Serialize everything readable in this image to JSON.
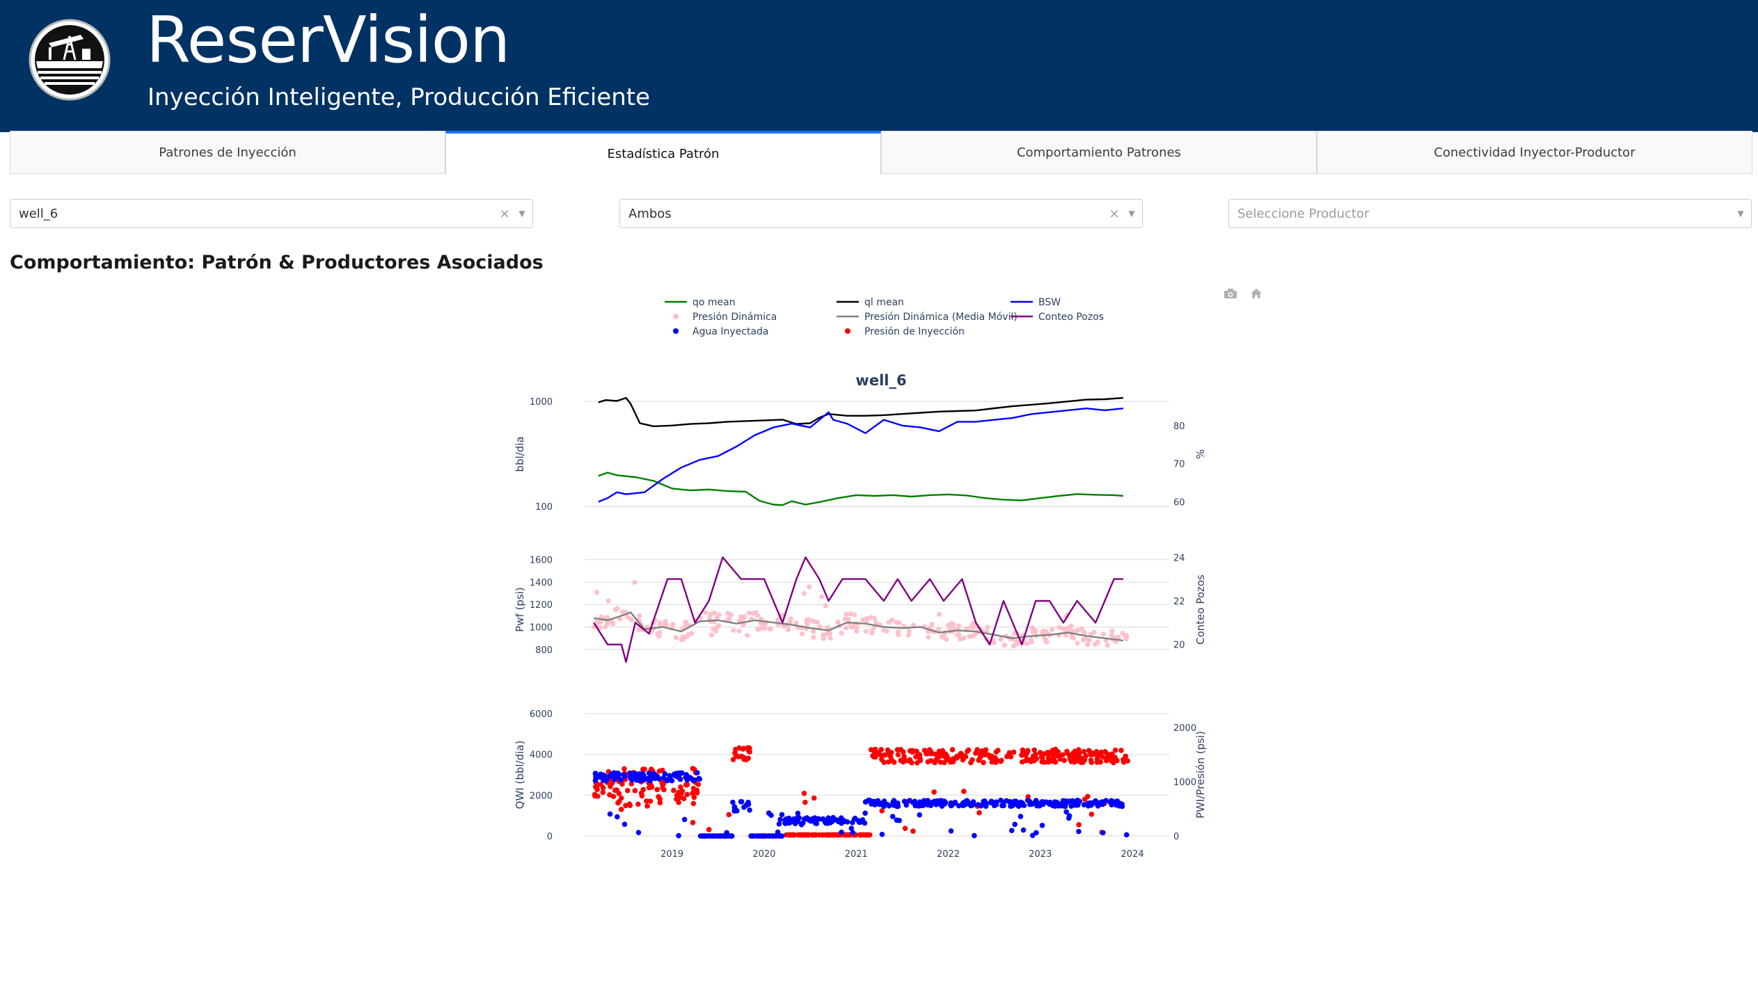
{
  "app": {
    "title": "ReserVision",
    "subtitle": "Inyección Inteligente, Producción Eficiente",
    "brand_color": "#003263"
  },
  "tabs": [
    {
      "label": "Patrones de Inyección",
      "active": false
    },
    {
      "label": "Estadística Patrón",
      "active": true
    },
    {
      "label": "Comportamiento Patrones",
      "active": false
    },
    {
      "label": "Conectividad Inyector-Productor",
      "active": false
    }
  ],
  "filters": {
    "pattern": {
      "value": "well_6"
    },
    "mode": {
      "value": "Ambos"
    },
    "producer": {
      "placeholder": "Seleccione Productor"
    }
  },
  "section": {
    "title": "Comportamiento: Patrón & Productores Asociados"
  },
  "modebar": {
    "icons": [
      "camera-icon",
      "home-icon"
    ]
  },
  "chart_data": {
    "type": "line",
    "title": "well_6",
    "legend": [
      {
        "name": "qo mean",
        "color": "#008000",
        "kind": "line"
      },
      {
        "name": "ql mean",
        "color": "#000000",
        "kind": "line"
      },
      {
        "name": "BSW",
        "color": "#0000ff",
        "kind": "line"
      },
      {
        "name": "Presión Dinámica",
        "color": "#ffc0cb",
        "kind": "marker"
      },
      {
        "name": "Presión Dinámica (Media Móvil)",
        "color": "#808080",
        "kind": "line"
      },
      {
        "name": "Conteo Pozos",
        "color": "#800080",
        "kind": "line"
      },
      {
        "name": "Agua Inyectada",
        "color": "#0000ff",
        "kind": "marker"
      },
      {
        "name": "Presión de Inyección",
        "color": "#ff0000",
        "kind": "marker"
      }
    ],
    "x_ticks": [
      "2019",
      "2020",
      "2021",
      "2022",
      "2023",
      "2024"
    ],
    "xlim": [
      2018.55,
      2024.9
    ],
    "panels": [
      {
        "ylabel_left": "bbl/dia",
        "ylabel_right": "%",
        "left_scale": "log",
        "ylim_left": [
          86,
          1150
        ],
        "ylim_right": [
          57,
          88
        ],
        "left_ticks": [
          "100",
          "1000"
        ],
        "right_ticks": [
          "60",
          "70",
          "80"
        ],
        "series": [
          {
            "name": "ql mean",
            "axis": "left",
            "x": [
              2018.7,
              2018.78,
              2018.9,
              2019.0,
              2019.05,
              2019.15,
              2019.3,
              2019.5,
              2019.7,
              2019.9,
              2020.1,
              2020.3,
              2020.5,
              2020.7,
              2020.85,
              2021.0,
              2021.1,
              2021.2,
              2021.4,
              2021.6,
              2021.8,
              2022.0,
              2022.2,
              2022.4,
              2022.6,
              2022.8,
              2023.0,
              2023.2,
              2023.4,
              2023.6,
              2023.8,
              2024.0,
              2024.2,
              2024.4
            ],
            "y": [
              980,
              1030,
              1010,
              1080,
              950,
              620,
              580,
              590,
              610,
              620,
              640,
              650,
              660,
              670,
              610,
              620,
              700,
              760,
              730,
              730,
              740,
              760,
              780,
              800,
              810,
              820,
              860,
              900,
              930,
              960,
              1000,
              1040,
              1050,
              1080
            ]
          },
          {
            "name": "qo mean",
            "axis": "left",
            "x": [
              2018.7,
              2018.8,
              2018.9,
              2019.1,
              2019.3,
              2019.5,
              2019.7,
              2019.9,
              2020.1,
              2020.3,
              2020.45,
              2020.6,
              2020.7,
              2020.8,
              2020.95,
              2021.1,
              2021.3,
              2021.5,
              2021.7,
              2021.9,
              2022.1,
              2022.3,
              2022.5,
              2022.7,
              2022.9,
              2023.1,
              2023.3,
              2023.5,
              2023.7,
              2023.9,
              2024.1,
              2024.3,
              2024.4
            ],
            "y": [
              195,
              210,
              198,
              190,
              175,
              148,
              142,
              145,
              140,
              138,
              113,
              104,
              103,
              112,
              104,
              110,
              120,
              128,
              126,
              128,
              124,
              128,
              130,
              127,
              120,
              116,
              114,
              120,
              126,
              131,
              129,
              128,
              126
            ]
          },
          {
            "name": "BSW",
            "axis": "right",
            "x": [
              2018.7,
              2018.8,
              2018.9,
              2019.0,
              2019.2,
              2019.4,
              2019.6,
              2019.8,
              2020.0,
              2020.2,
              2020.4,
              2020.6,
              2020.8,
              2021.0,
              2021.2,
              2021.25,
              2021.4,
              2021.6,
              2021.8,
              2022.0,
              2022.2,
              2022.4,
              2022.6,
              2022.8,
              2023.0,
              2023.2,
              2023.4,
              2023.6,
              2023.8,
              2024.0,
              2024.2,
              2024.4
            ],
            "y": [
              60,
              61,
              62.5,
              62,
              62.5,
              66,
              69,
              71,
              72,
              74.5,
              77.5,
              79.5,
              80.5,
              79.5,
              83.5,
              81.5,
              80.5,
              78,
              81.5,
              80,
              79.5,
              78.5,
              81,
              81,
              81.5,
              82,
              83,
              83.5,
              84,
              84.5,
              84,
              84.5
            ]
          }
        ]
      },
      {
        "ylabel_left": "Pwf (psi)",
        "ylabel_right": "Conteo Pozos",
        "ylim_left": [
          650,
          1660
        ],
        "ylim_right": [
          19,
          24.2
        ],
        "left_ticks": [
          "800",
          "1000",
          "1200",
          "1400",
          "1600"
        ],
        "right_ticks": [
          "20",
          "22",
          "24"
        ],
        "series": [
          {
            "name": "Presión Dinámica (Media Móvil)",
            "axis": "left",
            "x": [
              2018.65,
              2018.8,
              2018.95,
              2019.05,
              2019.2,
              2019.4,
              2019.6,
              2019.8,
              2020.0,
              2020.2,
              2020.4,
              2020.6,
              2020.8,
              2021.0,
              2021.2,
              2021.4,
              2021.6,
              2021.8,
              2022.0,
              2022.2,
              2022.4,
              2022.6,
              2022.8,
              2023.0,
              2023.2,
              2023.4,
              2023.6,
              2023.8,
              2024.0,
              2024.2,
              2024.4
            ],
            "y": [
              1080,
              1060,
              1100,
              1130,
              980,
              1000,
              960,
              1050,
              1060,
              1030,
              1060,
              1040,
              1020,
              990,
              970,
              1040,
              1030,
              1000,
              990,
              1000,
              950,
              970,
              960,
              930,
              900,
              920,
              930,
              950,
              920,
              900,
              880
            ]
          },
          {
            "name": "Conteo Pozos",
            "axis": "right",
            "x": [
              2018.65,
              2018.8,
              2018.95,
              2019.0,
              2019.1,
              2019.25,
              2019.45,
              2019.6,
              2019.75,
              2019.9,
              2020.05,
              2020.25,
              2020.5,
              2020.7,
              2020.85,
              2020.95,
              2021.1,
              2021.2,
              2021.35,
              2021.6,
              2021.8,
              2021.95,
              2022.1,
              2022.3,
              2022.45,
              2022.65,
              2022.8,
              2022.95,
              2023.1,
              2023.3,
              2023.45,
              2023.6,
              2023.75,
              2023.9,
              2024.1,
              2024.3,
              2024.4
            ],
            "y": [
              21,
              20,
              20,
              19.2,
              21,
              20.5,
              23,
              23,
              21,
              22,
              24,
              23,
              23,
              21,
              23,
              24,
              23,
              22,
              23,
              23,
              22,
              23,
              22,
              23,
              22,
              23,
              21,
              20,
              22,
              20,
              22,
              22,
              21,
              22,
              21,
              23,
              23
            ]
          }
        ],
        "scatter": {
          "name": "Presión Dinámica",
          "range_x": [
            2018.65,
            2024.45
          ],
          "count": 320
        }
      },
      {
        "ylabel_left": "QWI (bbl/dia)",
        "ylabel_right": "PWI/Presión (psi)",
        "ylim_left": [
          0,
          6000
        ],
        "ylim_right": [
          0,
          2260
        ],
        "left_ticks": [
          "0",
          "2000",
          "4000",
          "6000"
        ],
        "right_ticks": [
          "0",
          "1000",
          "2000"
        ],
        "scatter": [
          {
            "name": "Agua Inyectada",
            "axis": "left",
            "color": "#0000ff"
          },
          {
            "name": "Presión de Inyección",
            "axis": "right",
            "color": "#ff0000"
          }
        ]
      }
    ]
  }
}
